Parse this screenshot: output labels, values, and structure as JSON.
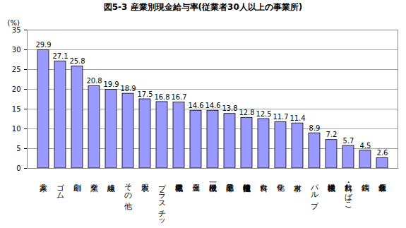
{
  "chart_data": {
    "type": "bar",
    "title": "図5-3 産業別現金給与率(従業者30人以上の事業所)",
    "y_label": "(%)",
    "categories": [
      "家具",
      "ゴム",
      "印刷",
      "窯業",
      "繊維",
      "その他",
      "衣服",
      "プラスチック",
      "電気機械",
      "金属",
      "一般機械",
      "電子部品",
      "情報通信機械",
      "食料",
      "化学",
      "木材",
      "パルプ",
      "輸送機械",
      "飲料・たばこ",
      "鉄鋼",
      "非鉄金属"
    ],
    "values": [
      29.9,
      27.1,
      25.8,
      20.8,
      19.9,
      18.9,
      17.5,
      16.8,
      16.7,
      14.6,
      14.6,
      13.8,
      12.8,
      12.5,
      11.7,
      11.4,
      8.9,
      7.2,
      5.7,
      4.5,
      2.6
    ],
    "color": "#9999ff",
    "ylim": [
      0,
      35
    ],
    "yticks": [
      0,
      5,
      10,
      15,
      20,
      25,
      30,
      35
    ],
    "grid": true,
    "data_labels": true
  }
}
